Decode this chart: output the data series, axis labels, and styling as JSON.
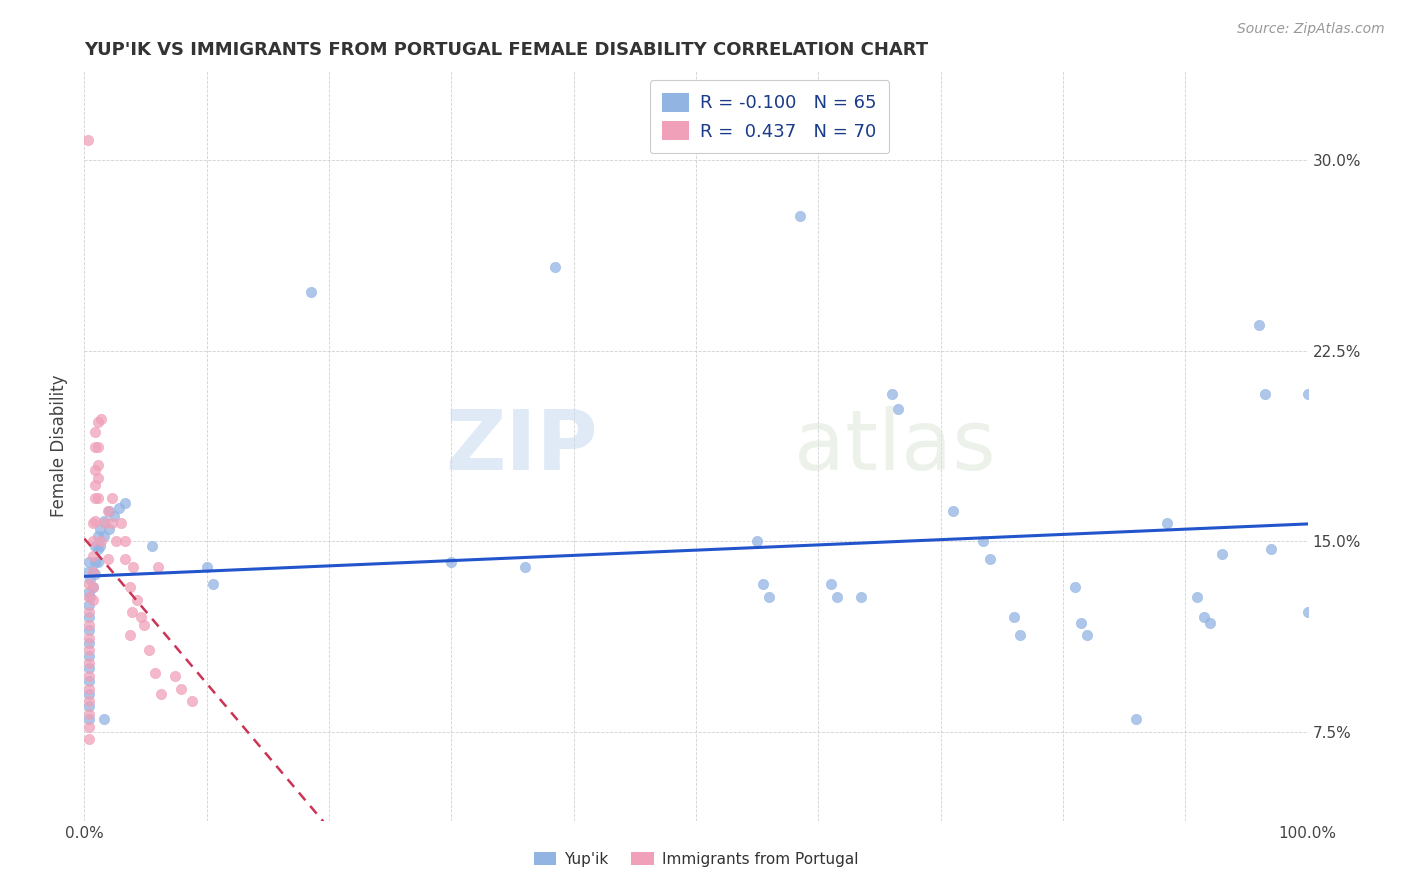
{
  "title": "YUP'IK VS IMMIGRANTS FROM PORTUGAL FEMALE DISABILITY CORRELATION CHART",
  "source": "Source: ZipAtlas.com",
  "ylabel": "Female Disability",
  "yticks": [
    0.075,
    0.15,
    0.225,
    0.3
  ],
  "ytick_labels": [
    "7.5%",
    "15.0%",
    "22.5%",
    "30.0%"
  ],
  "color_blue": "#92b4e3",
  "color_pink": "#f0a0b8",
  "trendline_blue": "#2255cc",
  "trendline_pink": "#cc3355",
  "watermark_zip": "ZIP",
  "watermark_atlas": "atlas",
  "xlim": [
    0.0,
    1.0
  ],
  "ylim": [
    0.04,
    0.335
  ],
  "blue_points": [
    [
      0.003,
      0.138
    ],
    [
      0.004,
      0.142
    ],
    [
      0.004,
      0.13
    ],
    [
      0.004,
      0.125
    ],
    [
      0.004,
      0.12
    ],
    [
      0.004,
      0.115
    ],
    [
      0.004,
      0.11
    ],
    [
      0.004,
      0.105
    ],
    [
      0.004,
      0.1
    ],
    [
      0.004,
      0.095
    ],
    [
      0.004,
      0.09
    ],
    [
      0.004,
      0.085
    ],
    [
      0.004,
      0.08
    ],
    [
      0.005,
      0.135
    ],
    [
      0.005,
      0.128
    ],
    [
      0.007,
      0.138
    ],
    [
      0.007,
      0.132
    ],
    [
      0.009,
      0.148
    ],
    [
      0.009,
      0.142
    ],
    [
      0.009,
      0.137
    ],
    [
      0.011,
      0.152
    ],
    [
      0.011,
      0.147
    ],
    [
      0.011,
      0.142
    ],
    [
      0.013,
      0.155
    ],
    [
      0.013,
      0.148
    ],
    [
      0.016,
      0.158
    ],
    [
      0.016,
      0.152
    ],
    [
      0.016,
      0.08
    ],
    [
      0.02,
      0.162
    ],
    [
      0.02,
      0.155
    ],
    [
      0.024,
      0.16
    ],
    [
      0.028,
      0.163
    ],
    [
      0.033,
      0.165
    ],
    [
      0.055,
      0.148
    ],
    [
      0.1,
      0.14
    ],
    [
      0.105,
      0.133
    ],
    [
      0.185,
      0.248
    ],
    [
      0.3,
      0.142
    ],
    [
      0.36,
      0.14
    ],
    [
      0.385,
      0.258
    ],
    [
      0.55,
      0.15
    ],
    [
      0.555,
      0.133
    ],
    [
      0.56,
      0.128
    ],
    [
      0.585,
      0.278
    ],
    [
      0.61,
      0.133
    ],
    [
      0.615,
      0.128
    ],
    [
      0.635,
      0.128
    ],
    [
      0.66,
      0.208
    ],
    [
      0.665,
      0.202
    ],
    [
      0.71,
      0.162
    ],
    [
      0.735,
      0.15
    ],
    [
      0.74,
      0.143
    ],
    [
      0.76,
      0.12
    ],
    [
      0.765,
      0.113
    ],
    [
      0.81,
      0.132
    ],
    [
      0.815,
      0.118
    ],
    [
      0.82,
      0.113
    ],
    [
      0.86,
      0.08
    ],
    [
      0.885,
      0.157
    ],
    [
      0.91,
      0.128
    ],
    [
      0.915,
      0.12
    ],
    [
      0.92,
      0.118
    ],
    [
      0.93,
      0.145
    ],
    [
      0.96,
      0.235
    ],
    [
      0.965,
      0.208
    ],
    [
      0.97,
      0.147
    ],
    [
      1.0,
      0.208
    ],
    [
      1.0,
      0.122
    ]
  ],
  "pink_points": [
    [
      0.003,
      0.308
    ],
    [
      0.004,
      0.133
    ],
    [
      0.004,
      0.128
    ],
    [
      0.004,
      0.122
    ],
    [
      0.004,
      0.117
    ],
    [
      0.004,
      0.112
    ],
    [
      0.004,
      0.107
    ],
    [
      0.004,
      0.102
    ],
    [
      0.004,
      0.097
    ],
    [
      0.004,
      0.092
    ],
    [
      0.004,
      0.087
    ],
    [
      0.004,
      0.082
    ],
    [
      0.004,
      0.077
    ],
    [
      0.004,
      0.072
    ],
    [
      0.007,
      0.157
    ],
    [
      0.007,
      0.15
    ],
    [
      0.007,
      0.144
    ],
    [
      0.007,
      0.138
    ],
    [
      0.007,
      0.132
    ],
    [
      0.007,
      0.127
    ],
    [
      0.009,
      0.193
    ],
    [
      0.009,
      0.187
    ],
    [
      0.009,
      0.178
    ],
    [
      0.009,
      0.172
    ],
    [
      0.009,
      0.167
    ],
    [
      0.009,
      0.158
    ],
    [
      0.011,
      0.197
    ],
    [
      0.011,
      0.187
    ],
    [
      0.011,
      0.18
    ],
    [
      0.011,
      0.175
    ],
    [
      0.011,
      0.167
    ],
    [
      0.014,
      0.198
    ],
    [
      0.014,
      0.15
    ],
    [
      0.017,
      0.157
    ],
    [
      0.019,
      0.162
    ],
    [
      0.019,
      0.143
    ],
    [
      0.023,
      0.167
    ],
    [
      0.023,
      0.157
    ],
    [
      0.026,
      0.15
    ],
    [
      0.03,
      0.157
    ],
    [
      0.033,
      0.15
    ],
    [
      0.033,
      0.143
    ],
    [
      0.037,
      0.132
    ],
    [
      0.037,
      0.113
    ],
    [
      0.039,
      0.122
    ],
    [
      0.043,
      0.127
    ],
    [
      0.046,
      0.12
    ],
    [
      0.049,
      0.117
    ],
    [
      0.053,
      0.107
    ],
    [
      0.058,
      0.098
    ],
    [
      0.063,
      0.09
    ],
    [
      0.04,
      0.14
    ],
    [
      0.06,
      0.14
    ],
    [
      0.074,
      0.097
    ],
    [
      0.079,
      0.092
    ],
    [
      0.088,
      0.087
    ]
  ]
}
